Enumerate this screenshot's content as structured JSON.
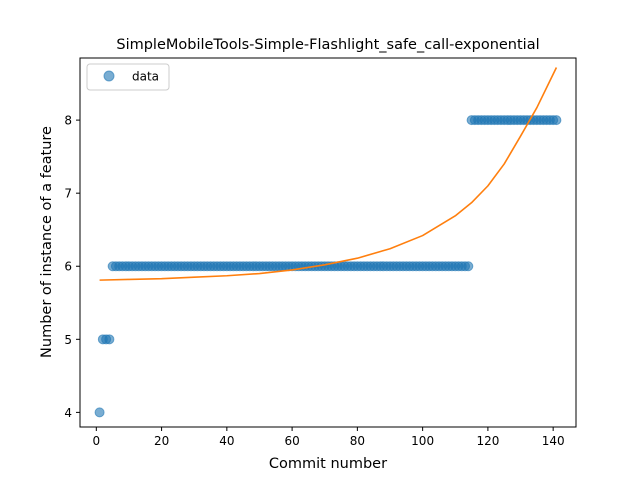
{
  "chart_data": {
    "type": "scatter",
    "title": "SimpleMobileTools-Simple-Flashlight_safe_call-exponential",
    "xlabel": "Commit number",
    "ylabel": "Number of instance of a feature",
    "xlim": [
      -5,
      147
    ],
    "ylim": [
      3.8,
      8.85
    ],
    "xticks": [
      0,
      20,
      40,
      60,
      80,
      100,
      120,
      140
    ],
    "yticks": [
      4,
      5,
      6,
      7,
      8
    ],
    "grid": false,
    "legend_position": "top-left",
    "series": [
      {
        "name": "data",
        "kind": "points",
        "color": "#1f77b4",
        "x": [
          1,
          2,
          3,
          4,
          5,
          6,
          7,
          8,
          9,
          10,
          11,
          12,
          13,
          14,
          15,
          16,
          17,
          18,
          19,
          20,
          21,
          22,
          23,
          24,
          25,
          26,
          27,
          28,
          29,
          30,
          31,
          32,
          33,
          34,
          35,
          36,
          37,
          38,
          39,
          40,
          41,
          42,
          43,
          44,
          45,
          46,
          47,
          48,
          49,
          50,
          51,
          52,
          53,
          54,
          55,
          56,
          57,
          58,
          59,
          60,
          61,
          62,
          63,
          64,
          65,
          66,
          67,
          68,
          69,
          70,
          71,
          72,
          73,
          74,
          75,
          76,
          77,
          78,
          79,
          80,
          81,
          82,
          83,
          84,
          85,
          86,
          87,
          88,
          89,
          90,
          91,
          92,
          93,
          94,
          95,
          96,
          97,
          98,
          99,
          100,
          101,
          102,
          103,
          104,
          105,
          106,
          107,
          108,
          109,
          110,
          111,
          112,
          113,
          114,
          115,
          116,
          117,
          118,
          119,
          120,
          121,
          122,
          123,
          124,
          125,
          126,
          127,
          128,
          129,
          130,
          131,
          132,
          133,
          134,
          135,
          136,
          137,
          138,
          139,
          140,
          141
        ],
        "y": [
          4,
          5,
          5,
          5,
          6,
          6,
          6,
          6,
          6,
          6,
          6,
          6,
          6,
          6,
          6,
          6,
          6,
          6,
          6,
          6,
          6,
          6,
          6,
          6,
          6,
          6,
          6,
          6,
          6,
          6,
          6,
          6,
          6,
          6,
          6,
          6,
          6,
          6,
          6,
          6,
          6,
          6,
          6,
          6,
          6,
          6,
          6,
          6,
          6,
          6,
          6,
          6,
          6,
          6,
          6,
          6,
          6,
          6,
          6,
          6,
          6,
          6,
          6,
          6,
          6,
          6,
          6,
          6,
          6,
          6,
          6,
          6,
          6,
          6,
          6,
          6,
          6,
          6,
          6,
          6,
          6,
          6,
          6,
          6,
          6,
          6,
          6,
          6,
          6,
          6,
          6,
          6,
          6,
          6,
          6,
          6,
          6,
          6,
          6,
          6,
          6,
          6,
          6,
          6,
          6,
          6,
          6,
          6,
          6,
          6,
          6,
          6,
          6,
          6,
          8,
          8,
          8,
          8,
          8,
          8,
          8,
          8,
          8,
          8,
          8,
          8,
          8,
          8,
          8,
          8,
          8,
          8,
          8,
          8,
          8,
          8,
          8,
          8,
          8,
          8,
          8
        ]
      },
      {
        "name": "",
        "kind": "line",
        "color": "#ff7f0e",
        "x": [
          1,
          10,
          20,
          30,
          40,
          50,
          60,
          70,
          80,
          90,
          100,
          110,
          115,
          120,
          125,
          130,
          135,
          141
        ],
        "y": [
          5.81,
          5.82,
          5.83,
          5.85,
          5.87,
          5.9,
          5.95,
          6.02,
          6.11,
          6.24,
          6.42,
          6.69,
          6.87,
          7.1,
          7.4,
          7.78,
          8.17,
          8.72
        ]
      }
    ]
  }
}
